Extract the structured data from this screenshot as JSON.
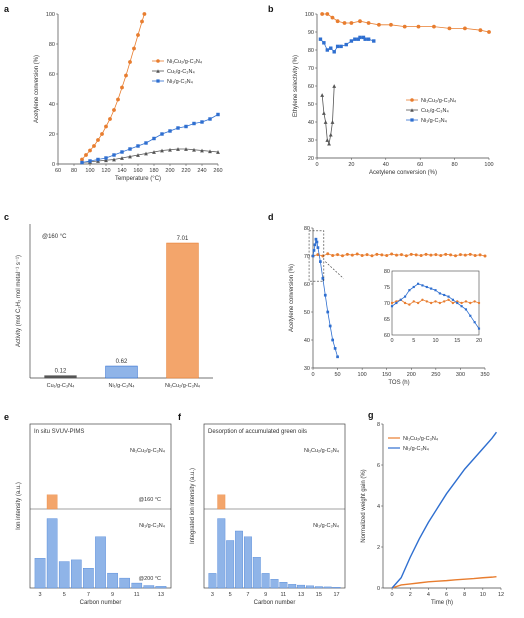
{
  "colors": {
    "orange": "#e87d2f",
    "gray": "#555555",
    "blue": "#2f6fd0",
    "lightblue": "#8fb4e8",
    "peach": "#f3a56b",
    "axis": "#444444"
  },
  "chart_data": [
    {
      "panel": "a",
      "type": "line",
      "xlabel": "Temperature (°C)",
      "ylabel": "Acetylene conversion (%)",
      "xlim": [
        60,
        260
      ],
      "ylim": [
        0,
        100
      ],
      "xticks": [
        60,
        80,
        100,
        120,
        140,
        160,
        180,
        200,
        220,
        240,
        260
      ],
      "yticks": [
        0,
        20,
        40,
        60,
        80,
        100
      ],
      "legend_position": "right",
      "series": [
        {
          "name": "Ni₁Cu₂/g-C₃N₄",
          "color": "orange",
          "marker": "circle",
          "x": [
            90,
            95,
            100,
            105,
            110,
            115,
            120,
            125,
            130,
            135,
            140,
            145,
            150,
            155,
            160,
            165,
            168
          ],
          "y": [
            3,
            6,
            9,
            12,
            16,
            20,
            25,
            30,
            36,
            43,
            51,
            59,
            68,
            77,
            86,
            95,
            100
          ]
        },
        {
          "name": "Cu₁/g-C₃N₄",
          "color": "gray",
          "marker": "triangle",
          "x": [
            90,
            100,
            110,
            120,
            130,
            140,
            150,
            160,
            170,
            180,
            190,
            200,
            210,
            220,
            230,
            240,
            250,
            260
          ],
          "y": [
            1,
            1.5,
            2,
            2.5,
            3,
            4,
            5,
            6,
            7,
            8,
            9,
            9.5,
            10,
            10,
            9.5,
            9,
            8.5,
            8
          ]
        },
        {
          "name": "Ni₁/g-C₃N₄",
          "color": "blue",
          "marker": "square",
          "x": [
            90,
            100,
            110,
            120,
            130,
            140,
            150,
            160,
            170,
            180,
            190,
            200,
            210,
            220,
            230,
            240,
            250,
            260
          ],
          "y": [
            1,
            2,
            3,
            4,
            6,
            8,
            10,
            12,
            14,
            17,
            20,
            22,
            24,
            25,
            27,
            28,
            30,
            33
          ]
        }
      ]
    },
    {
      "panel": "b",
      "type": "scatter",
      "xlabel": "Acetylene conversion (%)",
      "ylabel": "Ethylene selectivity (%)",
      "xlim": [
        0,
        100
      ],
      "ylim": [
        20,
        100
      ],
      "xticks": [
        0,
        20,
        40,
        60,
        80,
        100
      ],
      "yticks": [
        20,
        30,
        40,
        50,
        60,
        70,
        80,
        90,
        100
      ],
      "legend_position": "right",
      "series": [
        {
          "name": "Ni₁Cu₂/g-C₃N₄",
          "color": "orange",
          "marker": "circle",
          "x": [
            3,
            6,
            9,
            12,
            16,
            20,
            25,
            30,
            36,
            43,
            51,
            59,
            68,
            77,
            86,
            95,
            100
          ],
          "y": [
            100,
            100,
            98,
            96,
            95,
            95,
            96,
            95,
            94,
            94,
            93,
            93,
            93,
            92,
            92,
            91,
            90
          ]
        },
        {
          "name": "Cu₁/g-C₃N₄",
          "color": "gray",
          "marker": "triangle",
          "x": [
            3,
            4,
            5,
            6,
            7,
            8,
            9,
            10
          ],
          "y": [
            55,
            45,
            40,
            30,
            28,
            33,
            40,
            60
          ]
        },
        {
          "name": "Ni₁/g-C₃N₄",
          "color": "blue",
          "marker": "square",
          "x": [
            2,
            4,
            6,
            8,
            10,
            12,
            14,
            17,
            20,
            22,
            24,
            25,
            27,
            28,
            30,
            33
          ],
          "y": [
            86,
            84,
            80,
            81,
            79,
            82,
            82,
            83,
            85,
            86,
            86,
            87,
            87,
            86,
            86,
            85
          ]
        }
      ]
    },
    {
      "panel": "c",
      "type": "bar",
      "note": "@160 °C",
      "ylabel": "Activity (mol C₂H₂ mol metal⁻¹ s⁻¹)",
      "ylim": [
        0,
        8
      ],
      "categories": [
        "Cu₁/g-C₃N₄",
        "Ni₁/g-C₃N₄",
        "Ni₁Cu₂/g-C₃N₄"
      ],
      "values": [
        0.12,
        0.62,
        7.01
      ],
      "value_labels": [
        "0.12",
        "0.62",
        "7.01"
      ],
      "colors": [
        "gray",
        "lightblue",
        "peach"
      ]
    },
    {
      "panel": "d",
      "type": "line",
      "xlabel": "TOS (h)",
      "ylabel": "Acetylene conversion (%)",
      "xlim": [
        0,
        350
      ],
      "ylim": [
        30,
        80
      ],
      "xticks": [
        0,
        50,
        100,
        150,
        200,
        250,
        300,
        350
      ],
      "yticks": [
        30,
        40,
        50,
        60,
        70,
        80
      ],
      "series": [
        {
          "name": "Ni₁Cu₂/g-C₃N₄",
          "color": "orange",
          "marker": "circle",
          "x": [
            0,
            10,
            20,
            30,
            40,
            50,
            60,
            70,
            80,
            90,
            100,
            110,
            120,
            130,
            140,
            150,
            160,
            170,
            180,
            190,
            200,
            210,
            220,
            230,
            240,
            250,
            260,
            270,
            280,
            290,
            300,
            310,
            320,
            330,
            340,
            350
          ],
          "y": [
            70,
            70.5,
            70,
            70.8,
            70.2,
            70.5,
            70.1,
            70.6,
            70.3,
            70.7,
            70.2,
            70.5,
            70.1,
            70.6,
            70.4,
            70.2,
            70.7,
            70.3,
            70.5,
            70.1,
            70.6,
            70.4,
            70.2,
            70.6,
            70.3,
            70.5,
            70.2,
            70.6,
            70.4,
            70.1,
            70.5,
            70.3,
            70.6,
            70.2,
            70.4,
            70
          ]
        },
        {
          "name": "Ni₁/g-C₃N₄",
          "color": "blue",
          "marker": "square",
          "x": [
            0,
            2,
            4,
            6,
            8,
            10,
            15,
            20,
            25,
            30,
            35,
            40,
            45,
            50
          ],
          "y": [
            70,
            72,
            74,
            76,
            75,
            73,
            68,
            62,
            56,
            50,
            45,
            40,
            37,
            34
          ]
        }
      ],
      "inset": {
        "xlim": [
          0,
          20
        ],
        "ylim": [
          60,
          80
        ],
        "xticks": [
          0,
          5,
          10,
          15,
          20
        ],
        "yticks": [
          60,
          65,
          70,
          75,
          80
        ],
        "series": [
          {
            "name": "Ni₁Cu₂/g-C₃N₄",
            "color": "orange",
            "marker": "circle",
            "x": [
              0,
              1,
              2,
              3,
              4,
              5,
              6,
              7,
              8,
              9,
              10,
              11,
              12,
              13,
              14,
              15,
              16,
              17,
              18,
              19,
              20
            ],
            "y": [
              70,
              70.5,
              71,
              70,
              69.5,
              70.5,
              70,
              71,
              70.5,
              70,
              70.5,
              70,
              70.5,
              71,
              70,
              70.5,
              70,
              70.5,
              70,
              70.5,
              70
            ]
          },
          {
            "name": "Ni₁/g-C₃N₄",
            "color": "blue",
            "marker": "square",
            "x": [
              0,
              1,
              2,
              3,
              4,
              5,
              6,
              7,
              8,
              9,
              10,
              11,
              12,
              13,
              14,
              15,
              16,
              17,
              18,
              19,
              20
            ],
            "y": [
              69,
              70,
              71,
              72,
              74,
              75,
              76,
              75.5,
              75,
              74.5,
              74,
              73,
              72.5,
              72,
              71,
              70,
              69,
              68,
              66,
              64,
              62
            ]
          }
        ]
      }
    },
    {
      "panel": "e",
      "type": "bar",
      "title": "In situ SVUV-PIMS",
      "xlabel": "Carbon number",
      "ylabel": "Ion intensity (a.u.)",
      "xticks": [
        3,
        5,
        7,
        9,
        11,
        13
      ],
      "subplots": [
        {
          "name": "Ni₁Cu₂/g-C₃N₄",
          "note": "@160 °C",
          "color": "peach",
          "x": [
            4
          ],
          "values": [
            1
          ]
        },
        {
          "name": "Ni₁/g-C₃N₄",
          "note": "@200 °C",
          "color": "lightblue",
          "x": [
            3,
            4,
            5,
            6,
            7,
            8,
            9,
            10,
            11,
            12,
            13
          ],
          "values": [
            1.8,
            4.2,
            1.6,
            1.7,
            1.2,
            3.1,
            0.9,
            0.6,
            0.3,
            0.15,
            0.1
          ]
        }
      ]
    },
    {
      "panel": "f",
      "type": "bar",
      "title": "Desorption of accumulated green oils",
      "xlabel": "Carbon number",
      "ylabel": "Integrated ion intensity (a.u.)",
      "xticks": [
        3,
        5,
        7,
        9,
        11,
        13,
        15,
        17
      ],
      "subplots": [
        {
          "name": "Ni₁Cu₂/g-C₃N₄",
          "color": "peach",
          "x": [
            4
          ],
          "values": [
            1
          ]
        },
        {
          "name": "Ni₁/g-C₃N₄",
          "color": "lightblue",
          "x": [
            3,
            4,
            5,
            6,
            7,
            8,
            9,
            10,
            11,
            12,
            13,
            14,
            15,
            16,
            17
          ],
          "values": [
            2,
            9.5,
            6.5,
            7.8,
            7,
            4.2,
            2,
            1.2,
            0.8,
            0.5,
            0.4,
            0.3,
            0.2,
            0.15,
            0.1
          ]
        }
      ]
    },
    {
      "panel": "g",
      "type": "line",
      "xlabel": "Time (h)",
      "ylabel": "Normalized weight gain (%)",
      "xlim": [
        -1,
        12
      ],
      "ylim": [
        0,
        8
      ],
      "xticks": [
        0,
        2,
        4,
        6,
        8,
        10,
        12
      ],
      "yticks": [
        0,
        2,
        4,
        6,
        8
      ],
      "legend_position": "top-left",
      "series": [
        {
          "name": "Ni₁Cu₂/g-C₃N₄",
          "color": "orange",
          "x": [
            0,
            1,
            2,
            3,
            4,
            5,
            6,
            7,
            8,
            9,
            10,
            11,
            11.5
          ],
          "y": [
            0,
            0.15,
            0.2,
            0.25,
            0.3,
            0.33,
            0.36,
            0.4,
            0.43,
            0.46,
            0.5,
            0.53,
            0.55
          ]
        },
        {
          "name": "Ni₁/g-C₃N₄",
          "color": "blue",
          "x": [
            0,
            1,
            2,
            3,
            4,
            5,
            6,
            7,
            8,
            9,
            10,
            11,
            11.5
          ],
          "y": [
            0,
            0.5,
            1.5,
            2.4,
            3.2,
            3.9,
            4.6,
            5.2,
            5.8,
            6.3,
            6.8,
            7.3,
            7.6
          ]
        }
      ]
    }
  ]
}
